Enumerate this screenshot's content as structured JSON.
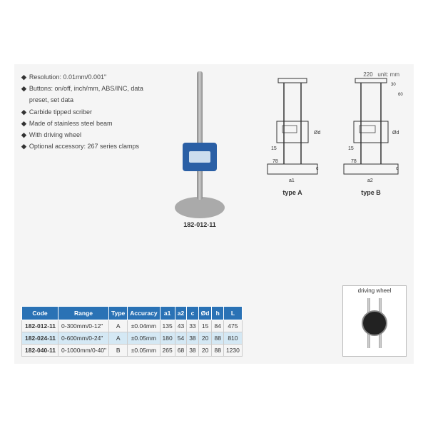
{
  "features": [
    "Resolution: 0.01mm/0.001\"",
    "Buttons: on/off, inch/mm, ABS/INC, data preset, set data",
    "Carbide tipped scriber",
    "Made of stainless steel beam",
    "With driving wheel",
    "Optional accessory: 267 series clamps"
  ],
  "product_label": "182-012-11",
  "unit_text": "unit: mm",
  "top_dim": "220",
  "diagrams": [
    {
      "label": "type A"
    },
    {
      "label": "type B"
    }
  ],
  "driving_wheel_label": "driving wheel",
  "table": {
    "headers": [
      "Code",
      "Range",
      "Type",
      "Accuracy",
      "a1",
      "a2",
      "c",
      "Ød",
      "h",
      "L"
    ],
    "rows": [
      {
        "alt": false,
        "cells": [
          "182-012-11",
          "0-300mm/0-12\"",
          "A",
          "±0.04mm",
          "135",
          "43",
          "33",
          "15",
          "84",
          "475"
        ]
      },
      {
        "alt": true,
        "cells": [
          "182-024-11",
          "0-600mm/0-24\"",
          "A",
          "±0.05mm",
          "180",
          "54",
          "38",
          "20",
          "88",
          "810"
        ]
      },
      {
        "alt": false,
        "cells": [
          "182-040-11",
          "0-1000mm/0-40\"",
          "B",
          "±0.05mm",
          "265",
          "68",
          "38",
          "20",
          "88",
          "1230"
        ]
      }
    ]
  },
  "colors": {
    "header_bg": "#2a72b5",
    "alt_row_bg": "#d4e8f4"
  }
}
